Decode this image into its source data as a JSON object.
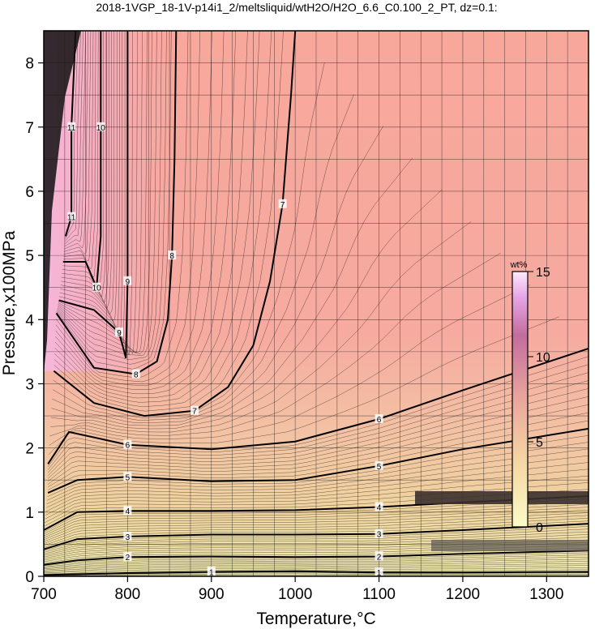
{
  "chart_data": {
    "type": "contour",
    "title": "2018-1VGP_18-1V-p14i1_2/meltsliquid/wtH2O/H2O_6.6_C0.100_2_PT, dz=0.1:",
    "xlabel": "Temperature,°C",
    "ylabel": "Pressure,x100MPa",
    "xlim": [
      700,
      1350
    ],
    "ylim": [
      0,
      8.5
    ],
    "x_ticks": [
      "700",
      "800",
      "900",
      "1000",
      "1100",
      "1200",
      "1300"
    ],
    "y_ticks": [
      "0",
      "1",
      "2",
      "3",
      "4",
      "5",
      "6",
      "7",
      "8"
    ],
    "grid": true,
    "colorbar": {
      "unit": "wt%",
      "range": [
        0,
        15
      ],
      "ticks": [
        "0",
        "5",
        "10",
        "15"
      ],
      "colors": [
        "#fbfbc8",
        "#f7d9a3",
        "#f3b09a",
        "#f0a1c0",
        "#fbd9f7"
      ]
    },
    "contours": [
      {
        "level": 1,
        "points": [
          [
            700,
            0.02
          ],
          [
            800,
            0.05
          ],
          [
            900,
            0.07
          ],
          [
            1000,
            0.08
          ],
          [
            1100,
            0.06
          ],
          [
            1200,
            0.06
          ],
          [
            1350,
            0.07
          ]
        ]
      },
      {
        "level": 2,
        "points": [
          [
            700,
            0.18
          ],
          [
            740,
            0.25
          ],
          [
            800,
            0.3
          ],
          [
            900,
            0.31
          ],
          [
            1000,
            0.3
          ],
          [
            1100,
            0.31
          ],
          [
            1200,
            0.35
          ],
          [
            1350,
            0.4
          ]
        ]
      },
      {
        "level": 3,
        "points": [
          [
            700,
            0.42
          ],
          [
            740,
            0.58
          ],
          [
            800,
            0.62
          ],
          [
            900,
            0.65
          ],
          [
            1000,
            0.65
          ],
          [
            1100,
            0.66
          ],
          [
            1200,
            0.72
          ],
          [
            1350,
            0.82
          ]
        ]
      },
      {
        "level": 4,
        "points": [
          [
            700,
            0.72
          ],
          [
            740,
            1.0
          ],
          [
            800,
            1.02
          ],
          [
            900,
            1.02
          ],
          [
            1000,
            1.03
          ],
          [
            1100,
            1.08
          ],
          [
            1200,
            1.15
          ],
          [
            1350,
            1.25
          ]
        ]
      },
      {
        "level": 5,
        "points": [
          [
            705,
            1.3
          ],
          [
            740,
            1.5
          ],
          [
            800,
            1.55
          ],
          [
            900,
            1.48
          ],
          [
            1000,
            1.5
          ],
          [
            1100,
            1.72
          ],
          [
            1200,
            1.98
          ],
          [
            1350,
            2.3
          ]
        ]
      },
      {
        "level": 6,
        "points": [
          [
            705,
            1.75
          ],
          [
            730,
            2.25
          ],
          [
            800,
            2.05
          ],
          [
            900,
            1.98
          ],
          [
            1000,
            2.1
          ],
          [
            1100,
            2.45
          ],
          [
            1200,
            2.9
          ],
          [
            1350,
            3.55
          ]
        ]
      },
      {
        "level": 7,
        "points": [
          [
            712,
            3.2
          ],
          [
            760,
            2.7
          ],
          [
            820,
            2.5
          ],
          [
            880,
            2.58
          ],
          [
            920,
            2.95
          ],
          [
            950,
            3.6
          ],
          [
            970,
            4.6
          ],
          [
            985,
            5.8
          ],
          [
            995,
            7.5
          ],
          [
            1000,
            8.5
          ]
        ]
      },
      {
        "level": 8,
        "points": [
          [
            715,
            4.1
          ],
          [
            760,
            3.25
          ],
          [
            810,
            3.15
          ],
          [
            835,
            3.35
          ],
          [
            848,
            4.0
          ],
          [
            853,
            5.0
          ],
          [
            856,
            6.5
          ],
          [
            858,
            8.5
          ]
        ]
      },
      {
        "level": 9,
        "points": [
          [
            718,
            4.3
          ],
          [
            760,
            4.15
          ],
          [
            790,
            3.8
          ],
          [
            798,
            3.4
          ],
          [
            800,
            4.6
          ],
          [
            800,
            6.5
          ],
          [
            800,
            8.5
          ]
        ]
      },
      {
        "level": 10,
        "points": [
          [
            723,
            4.9
          ],
          [
            750,
            4.9
          ],
          [
            763,
            4.5
          ],
          [
            768,
            5.3
          ],
          [
            768,
            7.0
          ],
          [
            768,
            8.5
          ]
        ]
      },
      {
        "level": 11,
        "points": [
          [
            726,
            5.3
          ],
          [
            733,
            5.6
          ],
          [
            733,
            7.0
          ],
          [
            738,
            8.5
          ]
        ]
      }
    ]
  }
}
